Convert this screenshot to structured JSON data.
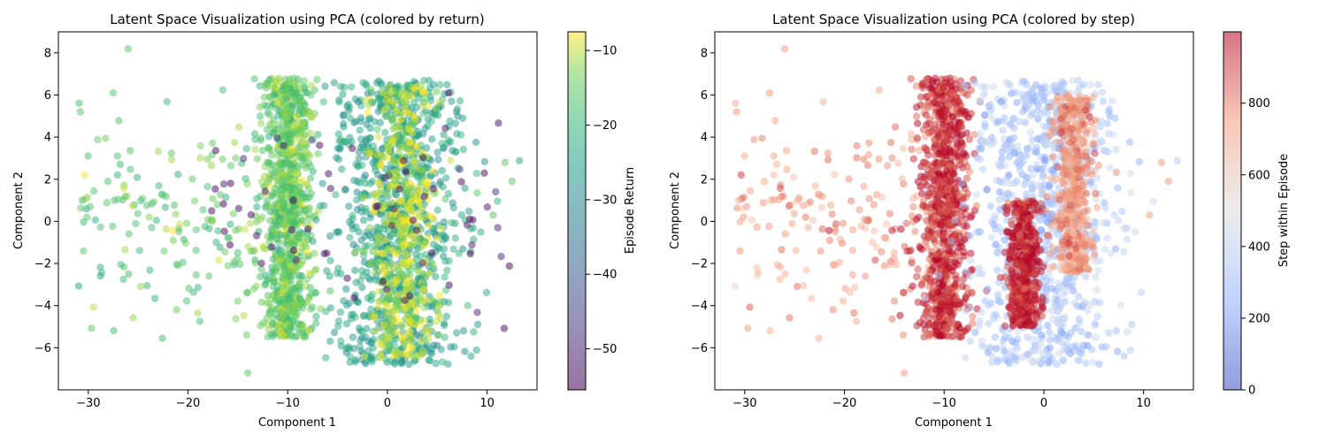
{
  "chart_data": [
    {
      "type": "scatter",
      "title": "Latent Space Visualization using PCA (colored by return)",
      "xlabel": "Component 1",
      "ylabel": "Component 2",
      "xlim": [
        -33,
        15
      ],
      "ylim": [
        -8,
        9
      ],
      "xticks": [
        -30,
        -20,
        -10,
        0,
        10
      ],
      "yticks": [
        -6,
        -4,
        -2,
        0,
        2,
        4,
        6,
        8
      ],
      "grid": false,
      "colorbar": {
        "label": "Episode Return",
        "colormap": "viridis",
        "range": [
          -55.5,
          -7.5
        ],
        "ticks": [
          -50,
          -40,
          -30,
          -20,
          -10
        ]
      },
      "point_alpha": 0.5,
      "clusters": [
        {
          "name": "left-scatter",
          "x_range": [
            -31,
            -11
          ],
          "y_range": [
            -7.2,
            8.2
          ],
          "color_value": -16
        },
        {
          "name": "left-band",
          "x_center": -10,
          "x_spread": 1.3,
          "y_range": [
            -5.5,
            6.8
          ],
          "color_value": -15
        },
        {
          "name": "right-mass",
          "x_center": 1,
          "x_spread": 3.2,
          "y_range": [
            -6.8,
            6.7
          ],
          "color_value": -25
        },
        {
          "name": "right-core",
          "x_center": 1.5,
          "x_spread": 1.6,
          "y_range": [
            -6.5,
            6.5
          ],
          "color_value": -10
        },
        {
          "name": "low-return-outliers",
          "x_range": [
            -18,
            12.5
          ],
          "y_range": [
            -6,
            6.3
          ],
          "color_value": -54
        }
      ],
      "outlier_points": [
        {
          "x": -26,
          "y": 8.2
        },
        {
          "x": -30.8,
          "y": 5.2
        },
        {
          "x": -27.5,
          "y": 6.1
        },
        {
          "x": -29.8,
          "y": 0.7
        },
        {
          "x": 12.5,
          "y": 1.9
        },
        {
          "x": 11.8,
          "y": 2.8
        },
        {
          "x": 10.6,
          "y": 0.3
        },
        {
          "x": -14,
          "y": -7.2
        }
      ]
    },
    {
      "type": "scatter",
      "title": "Latent Space Visualization using PCA (colored by step)",
      "xlabel": "Component 1",
      "ylabel": "Component 2",
      "xlim": [
        -33,
        15
      ],
      "ylim": [
        -8,
        9
      ],
      "xticks": [
        -30,
        -20,
        -10,
        0,
        10
      ],
      "yticks": [
        -6,
        -4,
        -2,
        0,
        2,
        4,
        6,
        8
      ],
      "grid": false,
      "colorbar": {
        "label": "Step within Episode",
        "colormap": "coolwarm",
        "range": [
          0,
          999
        ],
        "ticks": [
          0,
          200,
          400,
          600,
          800
        ]
      },
      "point_alpha": 0.5,
      "clusters": [
        {
          "name": "left-scatter",
          "x_range": [
            -31,
            -11
          ],
          "y_range": [
            -7.2,
            8.2
          ],
          "color_value": 780
        },
        {
          "name": "left-band",
          "x_center": -10,
          "x_spread": 1.3,
          "y_range": [
            -5.5,
            6.8
          ],
          "color_value": 950
        },
        {
          "name": "right-mass",
          "x_center": 0,
          "x_spread": 3.5,
          "y_range": [
            -6.8,
            6.7
          ],
          "color_value": 300
        },
        {
          "name": "right-core-high",
          "x_center": -2,
          "x_spread": 0.8,
          "y_range": [
            -5,
            1
          ],
          "color_value": 980
        },
        {
          "name": "right-core-mid",
          "x_center": 3,
          "x_spread": 1.0,
          "y_range": [
            -2.5,
            6
          ],
          "color_value": 780
        }
      ],
      "outlier_points": [
        {
          "x": -26,
          "y": 8.2
        },
        {
          "x": -30.8,
          "y": 5.2
        },
        {
          "x": -27.5,
          "y": 6.1
        },
        {
          "x": -29.8,
          "y": 0.7
        },
        {
          "x": 12.5,
          "y": 1.9
        },
        {
          "x": 11.8,
          "y": 2.8
        },
        {
          "x": 10.6,
          "y": 0.3
        },
        {
          "x": -14,
          "y": -7.2
        }
      ]
    }
  ]
}
